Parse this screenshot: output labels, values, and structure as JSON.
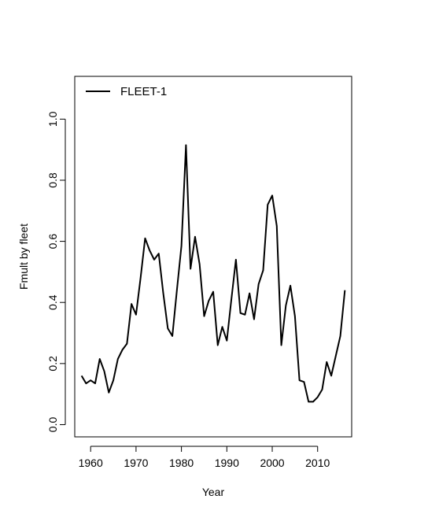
{
  "chart_data": {
    "type": "line",
    "xlabel": "Year",
    "ylabel": "Fmult by fleet",
    "xlim": [
      1956.5,
      2017.5
    ],
    "ylim": [
      -0.04,
      1.14
    ],
    "xticks": [
      1960,
      1970,
      1980,
      1990,
      2000,
      2010
    ],
    "yticks": [
      0.0,
      0.2,
      0.4,
      0.6,
      0.8,
      1.0
    ],
    "xtick_labels": [
      "1960",
      "1970",
      "1980",
      "1990",
      "2000",
      "2010"
    ],
    "ytick_labels": [
      "0.0",
      "0.2",
      "0.4",
      "0.6",
      "0.8",
      "1.0"
    ],
    "grid": false,
    "legend_position": "top-left",
    "line_color": "#000000",
    "series": [
      {
        "name": "FLEET-1",
        "x": [
          1958,
          1959,
          1960,
          1961,
          1962,
          1963,
          1964,
          1965,
          1966,
          1967,
          1968,
          1969,
          1970,
          1971,
          1972,
          1973,
          1974,
          1975,
          1976,
          1977,
          1978,
          1979,
          1980,
          1981,
          1982,
          1983,
          1984,
          1985,
          1986,
          1987,
          1988,
          1989,
          1990,
          1991,
          1992,
          1993,
          1994,
          1995,
          1996,
          1997,
          1998,
          1999,
          2000,
          2001,
          2002,
          2003,
          2004,
          2005,
          2006,
          2007,
          2008,
          2009,
          2010,
          2011,
          2012,
          2013,
          2014,
          2015,
          2016
        ],
        "values": [
          0.16,
          0.135,
          0.145,
          0.135,
          0.215,
          0.175,
          0.105,
          0.145,
          0.215,
          0.245,
          0.265,
          0.395,
          0.36,
          0.48,
          0.61,
          0.57,
          0.54,
          0.56,
          0.43,
          0.315,
          0.29,
          0.44,
          0.585,
          0.915,
          0.51,
          0.615,
          0.525,
          0.355,
          0.405,
          0.435,
          0.26,
          0.32,
          0.275,
          0.41,
          0.54,
          0.365,
          0.36,
          0.43,
          0.345,
          0.46,
          0.505,
          0.72,
          0.75,
          0.65,
          0.26,
          0.39,
          0.455,
          0.355,
          0.145,
          0.14,
          0.075,
          0.075,
          0.09,
          0.115,
          0.205,
          0.16,
          0.225,
          0.29,
          0.44
        ]
      }
    ]
  }
}
